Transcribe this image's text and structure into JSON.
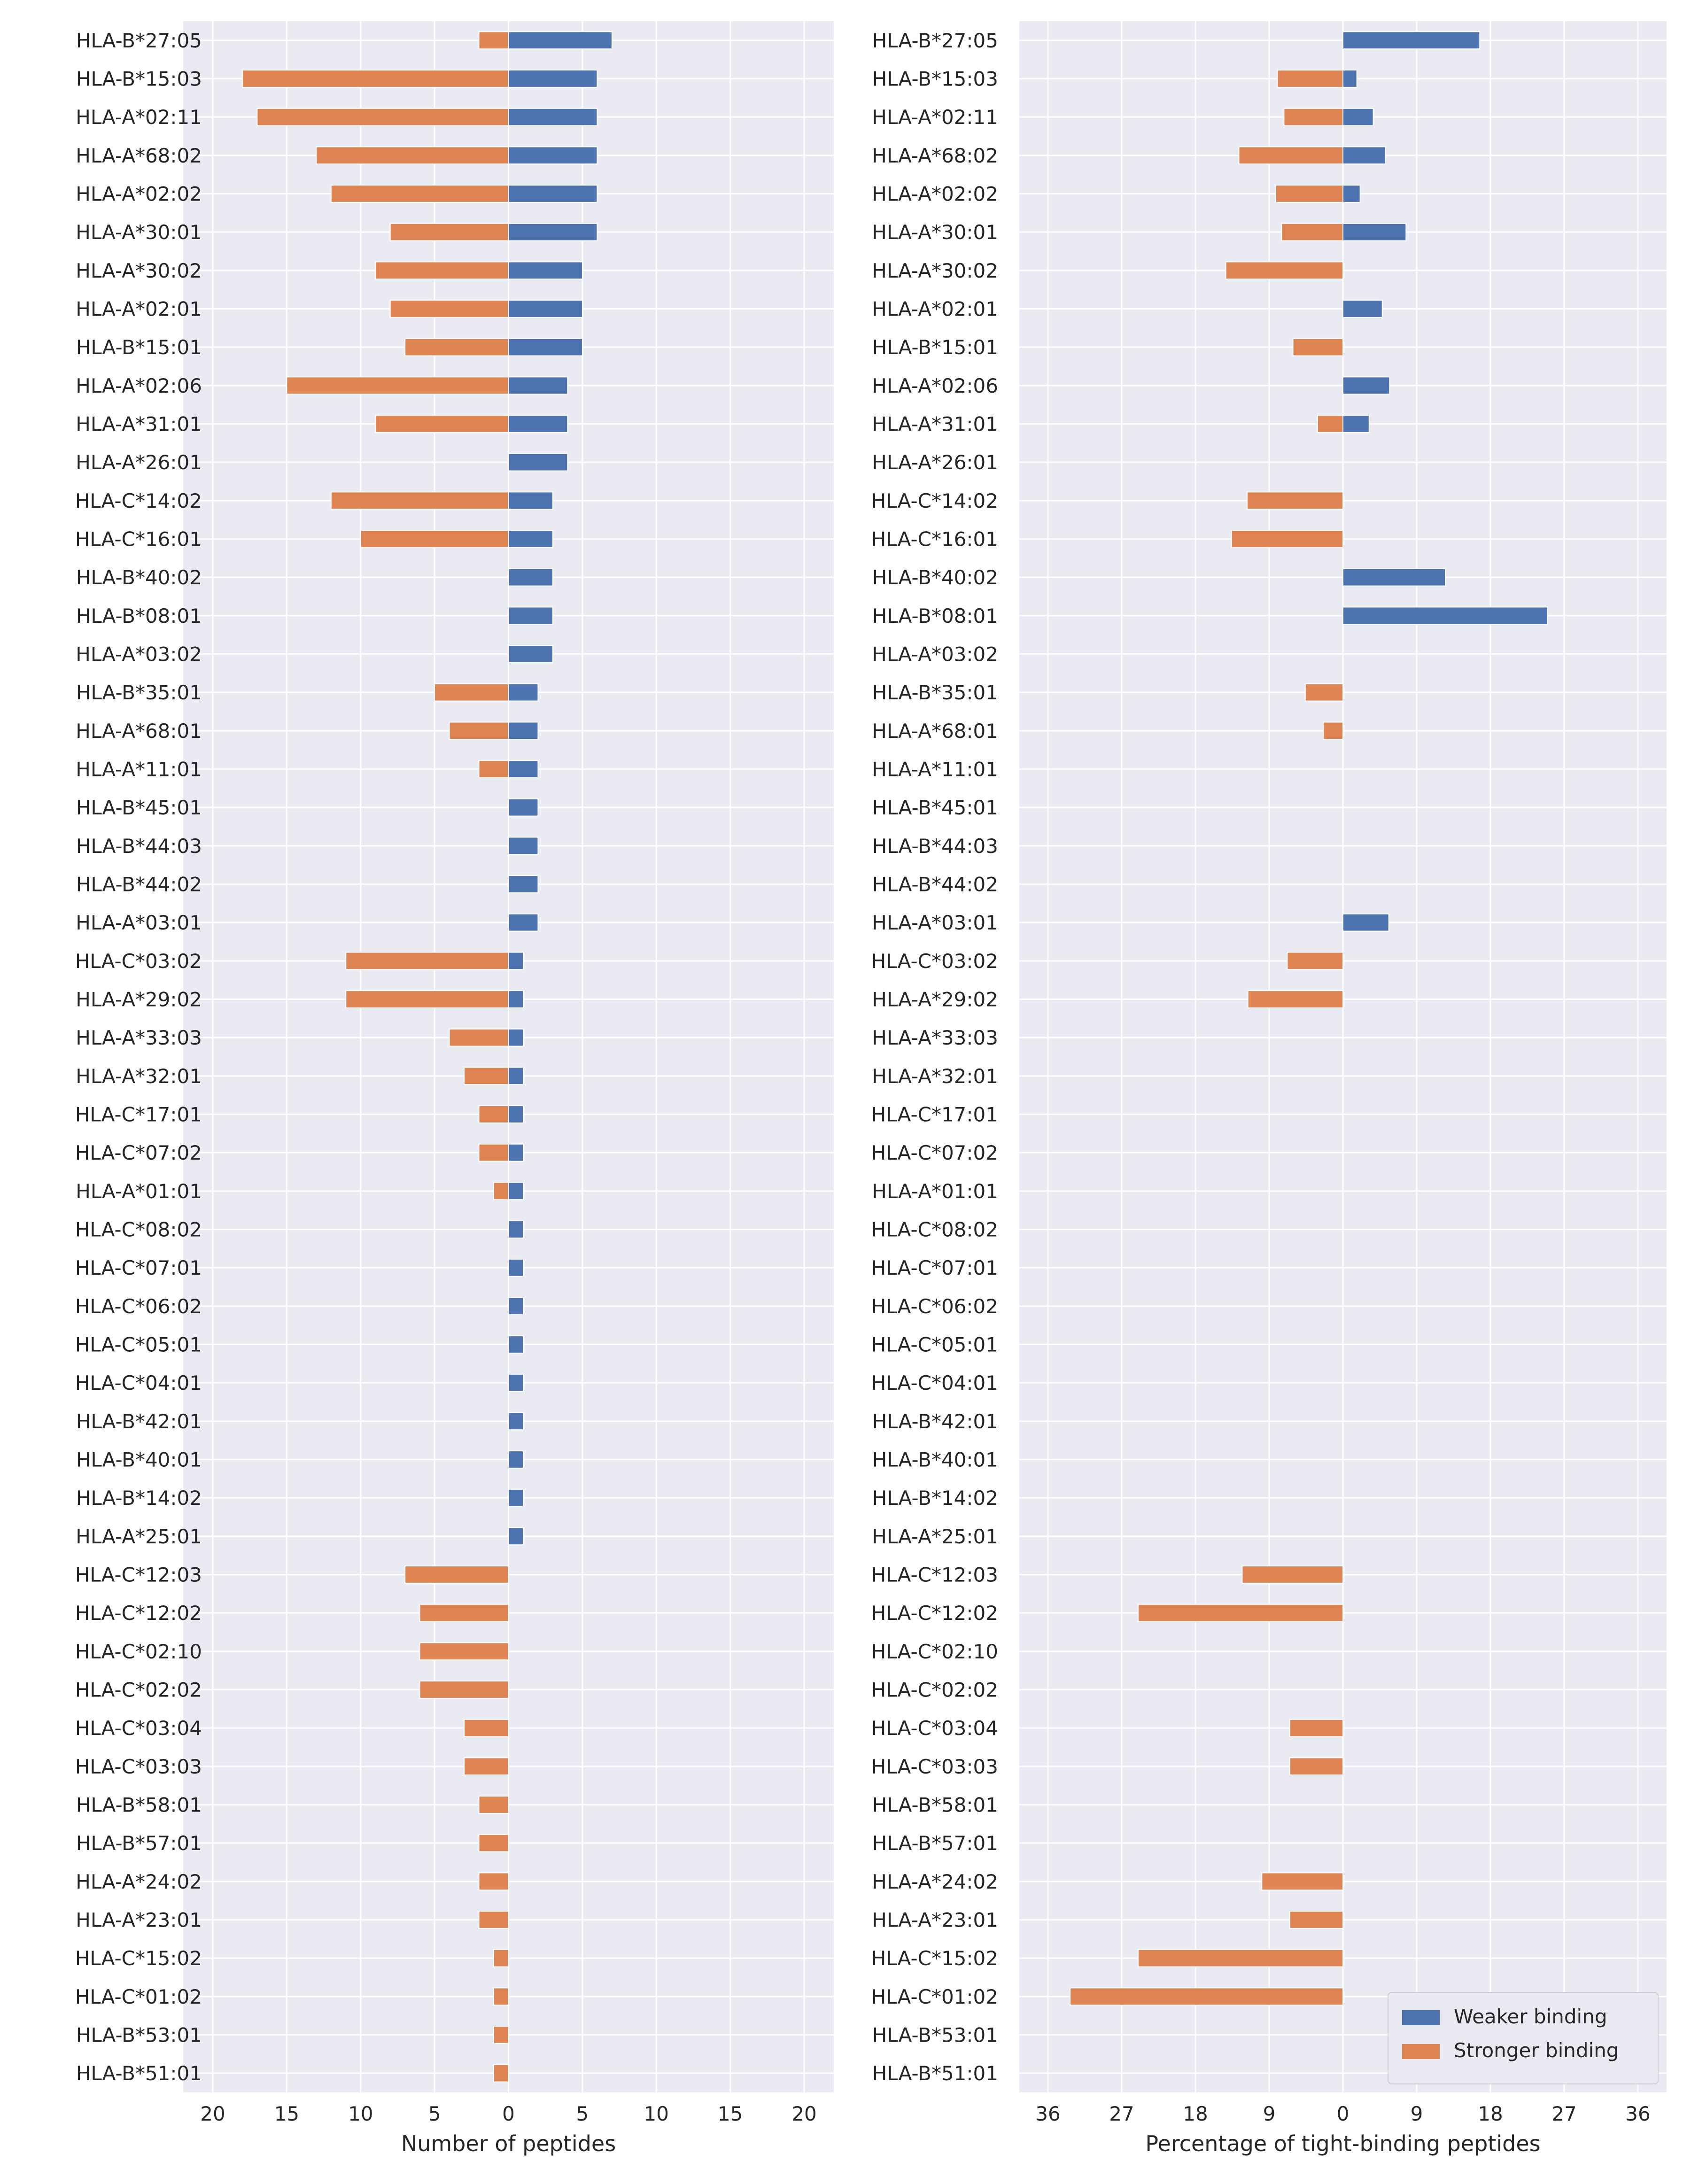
{
  "colors": {
    "weaker": "#4c72b0",
    "stronger": "#dd8452",
    "panel_bg": "#eaeaf2",
    "grid": "#ffffff",
    "text": "#262626"
  },
  "chart_data": [
    {
      "type": "bar",
      "orientation": "horizontal-diverging",
      "xlabel": "Number of peptides",
      "x_ticks": [
        -20,
        -15,
        -10,
        -5,
        0,
        5,
        10,
        15,
        20
      ],
      "x_tick_labels": [
        "20",
        "15",
        "10",
        "5",
        "0",
        "5",
        "10",
        "15",
        "20"
      ],
      "xlim": [
        -22,
        22
      ],
      "grid": true,
      "categories": [
        "HLA-B*27:05",
        "HLA-B*15:03",
        "HLA-A*02:11",
        "HLA-A*68:02",
        "HLA-A*02:02",
        "HLA-A*30:01",
        "HLA-A*30:02",
        "HLA-A*02:01",
        "HLA-B*15:01",
        "HLA-A*02:06",
        "HLA-A*31:01",
        "HLA-A*26:01",
        "HLA-C*14:02",
        "HLA-C*16:01",
        "HLA-B*40:02",
        "HLA-B*08:01",
        "HLA-A*03:02",
        "HLA-B*35:01",
        "HLA-A*68:01",
        "HLA-A*11:01",
        "HLA-B*45:01",
        "HLA-B*44:03",
        "HLA-B*44:02",
        "HLA-A*03:01",
        "HLA-C*03:02",
        "HLA-A*29:02",
        "HLA-A*33:03",
        "HLA-A*32:01",
        "HLA-C*17:01",
        "HLA-C*07:02",
        "HLA-A*01:01",
        "HLA-C*08:02",
        "HLA-C*07:01",
        "HLA-C*06:02",
        "HLA-C*05:01",
        "HLA-C*04:01",
        "HLA-B*42:01",
        "HLA-B*40:01",
        "HLA-B*14:02",
        "HLA-A*25:01",
        "HLA-C*12:03",
        "HLA-C*12:02",
        "HLA-C*02:10",
        "HLA-C*02:02",
        "HLA-C*03:04",
        "HLA-C*03:03",
        "HLA-B*58:01",
        "HLA-B*57:01",
        "HLA-A*24:02",
        "HLA-A*23:01",
        "HLA-C*15:02",
        "HLA-C*01:02",
        "HLA-B*53:01",
        "HLA-B*51:01"
      ],
      "series": [
        {
          "name": "Weaker binding",
          "color_key": "weaker",
          "direction": "right",
          "values": [
            7,
            6,
            6,
            6,
            6,
            6,
            5,
            5,
            5,
            4,
            4,
            4,
            3,
            3,
            3,
            3,
            3,
            2,
            2,
            2,
            2,
            2,
            2,
            2,
            1,
            1,
            1,
            1,
            1,
            1,
            1,
            1,
            1,
            1,
            1,
            1,
            1,
            1,
            1,
            1,
            0,
            0,
            0,
            0,
            0,
            0,
            0,
            0,
            0,
            0,
            0,
            0,
            0,
            0
          ]
        },
        {
          "name": "Stronger binding",
          "color_key": "stronger",
          "direction": "left",
          "values": [
            2,
            18,
            17,
            13,
            12,
            8,
            9,
            8,
            7,
            15,
            9,
            0,
            12,
            10,
            0,
            0,
            0,
            5,
            4,
            2,
            0,
            0,
            0,
            0,
            11,
            11,
            4,
            3,
            2,
            2,
            1,
            0,
            0,
            0,
            0,
            0,
            0,
            0,
            0,
            0,
            7,
            6,
            6,
            6,
            3,
            3,
            2,
            2,
            2,
            2,
            1,
            1,
            1,
            1
          ]
        }
      ]
    },
    {
      "type": "bar",
      "orientation": "horizontal-diverging",
      "xlabel": "Percentage of tight-binding peptides",
      "x_ticks": [
        -36,
        -27,
        -18,
        -9,
        0,
        9,
        18,
        27,
        36
      ],
      "x_tick_labels": [
        "36",
        "27",
        "18",
        "9",
        "0",
        "9",
        "18",
        "27",
        "36"
      ],
      "xlim": [
        -39.5,
        39.5
      ],
      "grid": true,
      "legend_position": "bottom-right",
      "categories": [
        "HLA-B*27:05",
        "HLA-B*15:03",
        "HLA-A*02:11",
        "HLA-A*68:02",
        "HLA-A*02:02",
        "HLA-A*30:01",
        "HLA-A*30:02",
        "HLA-A*02:01",
        "HLA-B*15:01",
        "HLA-A*02:06",
        "HLA-A*31:01",
        "HLA-A*26:01",
        "HLA-C*14:02",
        "HLA-C*16:01",
        "HLA-B*40:02",
        "HLA-B*08:01",
        "HLA-A*03:02",
        "HLA-B*35:01",
        "HLA-A*68:01",
        "HLA-A*11:01",
        "HLA-B*45:01",
        "HLA-B*44:03",
        "HLA-B*44:02",
        "HLA-A*03:01",
        "HLA-C*03:02",
        "HLA-A*29:02",
        "HLA-A*33:03",
        "HLA-A*32:01",
        "HLA-C*17:01",
        "HLA-C*07:02",
        "HLA-A*01:01",
        "HLA-C*08:02",
        "HLA-C*07:01",
        "HLA-C*06:02",
        "HLA-C*05:01",
        "HLA-C*04:01",
        "HLA-B*42:01",
        "HLA-B*40:01",
        "HLA-B*14:02",
        "HLA-A*25:01",
        "HLA-C*12:03",
        "HLA-C*12:02",
        "HLA-C*02:10",
        "HLA-C*02:02",
        "HLA-C*03:04",
        "HLA-C*03:03",
        "HLA-B*58:01",
        "HLA-B*57:01",
        "HLA-A*24:02",
        "HLA-A*23:01",
        "HLA-C*15:02",
        "HLA-C*01:02",
        "HLA-B*53:01",
        "HLA-B*51:01"
      ],
      "series": [
        {
          "name": "Weaker binding",
          "color_key": "weaker",
          "direction": "right",
          "values": [
            16.7,
            1.7,
            3.7,
            5.2,
            2.1,
            7.7,
            0,
            4.8,
            0,
            5.7,
            3.2,
            0,
            0,
            0,
            12.5,
            25,
            0,
            0,
            0,
            0,
            0,
            0,
            0,
            5.6,
            0,
            0,
            0,
            0,
            0,
            0,
            0,
            0,
            0,
            0,
            0,
            0,
            0,
            0,
            0,
            0,
            0,
            0,
            0,
            0,
            0,
            0,
            0,
            0,
            0,
            0,
            0,
            0,
            0,
            0
          ]
        },
        {
          "name": "Stronger binding",
          "color_key": "stronger",
          "direction": "left",
          "values": [
            0,
            8.0,
            7.2,
            12.7,
            8.2,
            7.5,
            14.3,
            0,
            6.1,
            0,
            3.1,
            0,
            11.7,
            13.6,
            0,
            0,
            0,
            4.6,
            2.4,
            0,
            0,
            0,
            0,
            0,
            6.8,
            11.6,
            0,
            0,
            0,
            0,
            0,
            0,
            0,
            0,
            0,
            0,
            0,
            0,
            0,
            0,
            12.3,
            25,
            0,
            0,
            6.5,
            6.5,
            0,
            0,
            9.9,
            6.5,
            25,
            33.3,
            0,
            0
          ]
        }
      ]
    }
  ]
}
